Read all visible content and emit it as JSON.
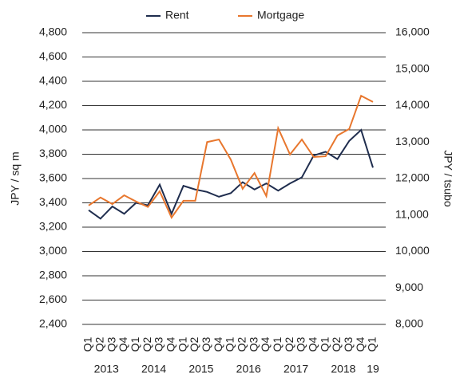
{
  "chart_data": {
    "type": "line",
    "y_label": "JPY / sq m",
    "y2_label": "JPY / tsubo",
    "categories": [
      "Q1",
      "Q2",
      "Q3",
      "Q4",
      "Q1",
      "Q2",
      "Q3",
      "Q4",
      "Q1",
      "Q2",
      "Q3",
      "Q4",
      "Q1",
      "Q2",
      "Q3",
      "Q4",
      "Q1",
      "Q2",
      "Q3",
      "Q4",
      "Q1",
      "Q2",
      "Q3",
      "Q4",
      "Q1"
    ],
    "years": [
      "2013",
      "2014",
      "2015",
      "2016",
      "2017",
      "2018",
      "19"
    ],
    "series": [
      {
        "name": "Rent",
        "color": "#1f2d4e",
        "values": [
          3340,
          3270,
          3370,
          3310,
          3400,
          3380,
          3550,
          3310,
          3540,
          3510,
          3490,
          3450,
          3480,
          3570,
          3510,
          3560,
          3500,
          3560,
          3610,
          3790,
          3820,
          3760,
          3910,
          4000,
          3690
        ]
      },
      {
        "name": "Mortgage",
        "color": "#e8772e",
        "axis": "y2",
        "values": [
          11260,
          11480,
          11300,
          11540,
          11370,
          11220,
          11650,
          10930,
          11390,
          11390,
          13000,
          13070,
          12520,
          11720,
          12150,
          11520,
          13380,
          12660,
          13070,
          12590,
          12610,
          13180,
          13360,
          14270,
          14100
        ]
      }
    ],
    "ylim": [
      2400,
      4800
    ],
    "yticks": [
      {
        "value": 2400,
        "label": "2,400"
      },
      {
        "value": 2600,
        "label": "2,600"
      },
      {
        "value": 2800,
        "label": "2,800"
      },
      {
        "value": 3000,
        "label": "3,000"
      },
      {
        "value": 3200,
        "label": "3,200"
      },
      {
        "value": 3400,
        "label": "3,400"
      },
      {
        "value": 3600,
        "label": "3,600"
      },
      {
        "value": 3800,
        "label": "3,800"
      },
      {
        "value": 4000,
        "label": "4,000"
      },
      {
        "value": 4200,
        "label": "4,200"
      },
      {
        "value": 4400,
        "label": "4,400"
      },
      {
        "value": 4600,
        "label": "4,600"
      },
      {
        "value": 4800,
        "label": "4,800"
      }
    ],
    "y2lim": [
      8000,
      16000
    ],
    "y2ticks": [
      {
        "value": 8000,
        "label": "8,000"
      },
      {
        "value": 9000,
        "label": "9,000"
      },
      {
        "value": 10000,
        "label": "10,000"
      },
      {
        "value": 11000,
        "label": "11,000"
      },
      {
        "value": 12000,
        "label": "12,000"
      },
      {
        "value": 13000,
        "label": "13,000"
      },
      {
        "value": 14000,
        "label": "14,000"
      },
      {
        "value": 15000,
        "label": "15,000"
      },
      {
        "value": 16000,
        "label": "16,000"
      }
    ],
    "grid": true
  }
}
